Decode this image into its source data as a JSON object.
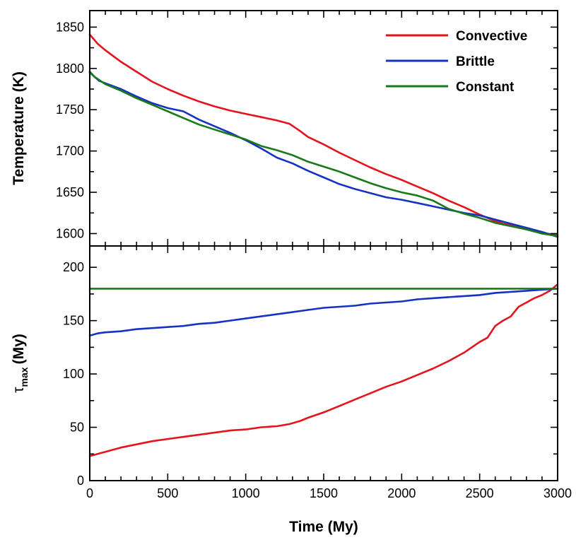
{
  "chart_data": [
    {
      "type": "line",
      "panel": "top",
      "ylabel": "Temperature (K)",
      "xlim": [
        0,
        3000
      ],
      "ylim": [
        1585,
        1870
      ],
      "yticks": [
        1600,
        1650,
        1700,
        1750,
        1800,
        1850
      ],
      "grid": false,
      "legend_position": "top-right",
      "series": [
        {
          "name": "Convective",
          "color": "#e3141b",
          "x": [
            0,
            50,
            100,
            200,
            300,
            400,
            500,
            600,
            700,
            800,
            900,
            1000,
            1100,
            1200,
            1280,
            1350,
            1400,
            1500,
            1600,
            1700,
            1800,
            1900,
            2000,
            2100,
            2200,
            2300,
            2400,
            2500,
            2600,
            2650,
            2700,
            2800,
            2900,
            3000
          ],
          "y": [
            1841,
            1830,
            1822,
            1808,
            1796,
            1784,
            1775,
            1767,
            1760,
            1754,
            1749,
            1745,
            1741,
            1737,
            1733,
            1724,
            1717,
            1708,
            1698,
            1689,
            1680,
            1672,
            1665,
            1657,
            1649,
            1640,
            1632,
            1623,
            1615,
            1612,
            1610,
            1605,
            1601,
            1598
          ]
        },
        {
          "name": "Brittle",
          "color": "#1632c2",
          "x": [
            0,
            30,
            60,
            100,
            200,
            300,
            400,
            500,
            600,
            700,
            800,
            900,
            1000,
            1100,
            1200,
            1300,
            1400,
            1500,
            1600,
            1700,
            1800,
            1900,
            2000,
            2100,
            2200,
            2300,
            2400,
            2500,
            2600,
            2700,
            2800,
            2900,
            3000
          ],
          "y": [
            1796,
            1790,
            1785,
            1782,
            1775,
            1766,
            1758,
            1752,
            1748,
            1738,
            1730,
            1722,
            1713,
            1703,
            1692,
            1685,
            1676,
            1668,
            1660,
            1654,
            1649,
            1644,
            1641,
            1637,
            1633,
            1629,
            1625,
            1622,
            1617,
            1612,
            1607,
            1602,
            1596
          ]
        },
        {
          "name": "Constant",
          "color": "#187a18",
          "x": [
            0,
            30,
            60,
            100,
            200,
            300,
            400,
            500,
            600,
            700,
            800,
            900,
            1000,
            1100,
            1200,
            1300,
            1400,
            1500,
            1600,
            1700,
            1800,
            1900,
            2000,
            2100,
            2200,
            2300,
            2400,
            2500,
            2600,
            2700,
            2800,
            2900,
            3000
          ],
          "y": [
            1795,
            1790,
            1786,
            1781,
            1773,
            1764,
            1756,
            1748,
            1740,
            1732,
            1726,
            1720,
            1714,
            1706,
            1701,
            1695,
            1687,
            1681,
            1675,
            1668,
            1661,
            1655,
            1650,
            1646,
            1640,
            1630,
            1624,
            1619,
            1613,
            1609,
            1605,
            1600,
            1597
          ]
        }
      ]
    },
    {
      "type": "line",
      "panel": "bottom",
      "xlabel": "Time (My)",
      "ylabel_main": "τ",
      "ylabel_sub": "max",
      "ylabel_unit": "(My)",
      "xlim": [
        0,
        3000
      ],
      "ylim": [
        0,
        220
      ],
      "xticks": [
        0,
        500,
        1000,
        1500,
        2000,
        2500,
        3000
      ],
      "yticks": [
        0,
        50,
        100,
        150,
        200
      ],
      "grid": false,
      "series": [
        {
          "name": "Convective",
          "color": "#e3141b",
          "x": [
            0,
            100,
            200,
            300,
            400,
            500,
            600,
            700,
            800,
            900,
            1000,
            1100,
            1200,
            1280,
            1350,
            1400,
            1500,
            1600,
            1700,
            1800,
            1900,
            2000,
            2100,
            2200,
            2300,
            2400,
            2500,
            2550,
            2600,
            2650,
            2700,
            2750,
            2800,
            2850,
            2900,
            2950,
            3000
          ],
          "y": [
            23,
            27,
            31,
            34,
            37,
            39,
            41,
            43,
            45,
            47,
            48,
            50,
            51,
            53,
            56,
            59,
            64,
            70,
            76,
            82,
            88,
            93,
            99,
            105,
            112,
            120,
            130,
            134,
            145,
            150,
            154,
            163,
            167,
            171,
            174,
            178,
            184
          ]
        },
        {
          "name": "Brittle",
          "color": "#1632c2",
          "x": [
            0,
            50,
            100,
            200,
            300,
            400,
            500,
            600,
            700,
            800,
            900,
            1000,
            1100,
            1200,
            1300,
            1400,
            1500,
            1600,
            1700,
            1800,
            1900,
            2000,
            2100,
            2200,
            2300,
            2400,
            2500,
            2600,
            2700,
            2800,
            2900,
            3000
          ],
          "y": [
            136,
            138,
            139,
            140,
            142,
            143,
            144,
            145,
            147,
            148,
            150,
            152,
            154,
            156,
            158,
            160,
            162,
            163,
            164,
            166,
            167,
            168,
            170,
            171,
            172,
            173,
            174,
            176,
            177,
            178,
            179,
            180
          ]
        },
        {
          "name": "Constant",
          "color": "#187a18",
          "x": [
            0,
            3000
          ],
          "y": [
            180,
            180
          ]
        }
      ]
    }
  ]
}
